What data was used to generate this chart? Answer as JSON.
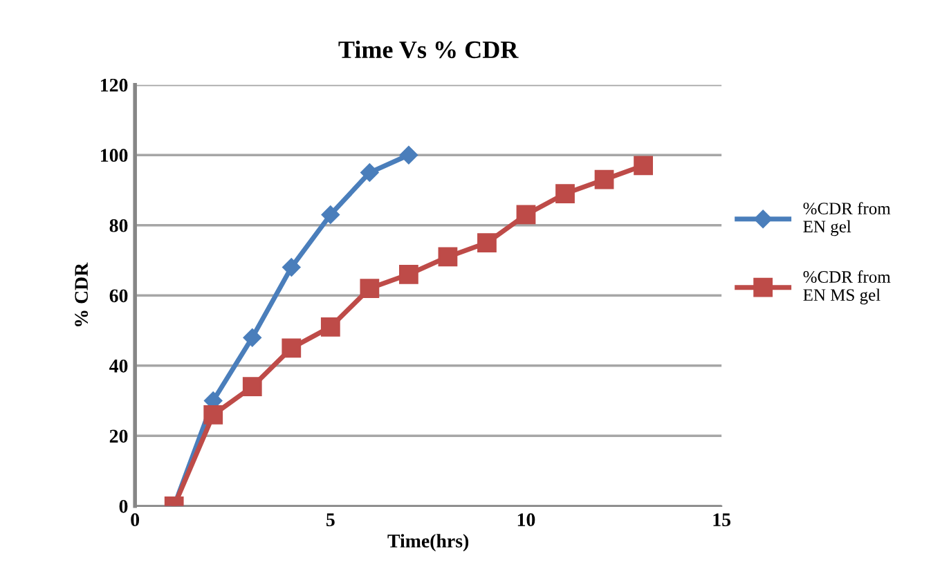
{
  "chart_data": {
    "type": "line",
    "title": "Time Vs % CDR",
    "xlabel": "Time(hrs)",
    "ylabel": "% CDR",
    "xlim": [
      0,
      15
    ],
    "xticks": [
      0,
      5,
      10,
      15
    ],
    "ylim": [
      0,
      120
    ],
    "yticks": [
      0,
      20,
      40,
      60,
      80,
      100,
      120
    ],
    "grid": "y",
    "legend": "right",
    "line_style": "solid",
    "series": [
      {
        "name": "%CDR from\nEN gel",
        "color": "#4a7ebb",
        "marker": "diamond",
        "x": [
          1,
          2,
          3,
          4,
          5,
          6,
          7
        ],
        "values": [
          0,
          30,
          48,
          68,
          83,
          95,
          100
        ]
      },
      {
        "name": "%CDR from\nEN MS gel",
        "color": "#be4b48",
        "marker": "square",
        "x": [
          1,
          2,
          3,
          4,
          5,
          6,
          7,
          8,
          9,
          10,
          11,
          12,
          13
        ],
        "values": [
          0,
          26,
          34,
          45,
          51,
          62,
          66,
          71,
          75,
          83,
          89,
          93,
          97
        ]
      }
    ]
  }
}
